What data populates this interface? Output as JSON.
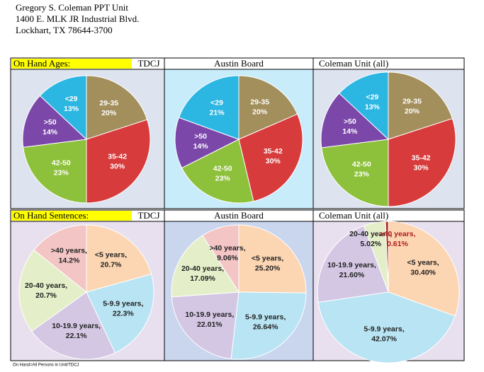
{
  "header": {
    "lines": [
      "Gregory S. Coleman PPT Unit",
      "1400 E. MLK JR Industrial Blvd.",
      "Lockhart, TX  78644-3700"
    ]
  },
  "rows": [
    "On Hand Ages:",
    "On Hand Sentences:"
  ],
  "footnote": "On Hand=All Persons in Unit/TDCJ",
  "chart_data": [
    {
      "type": "pie",
      "title": "TDCJ",
      "categories": [
        "29-35",
        "35-42",
        "42-50",
        ">50",
        "<29"
      ],
      "values": [
        20,
        30,
        23,
        14,
        13
      ],
      "value_labels": [
        "20%",
        "30%",
        "23%",
        "14%",
        "13%"
      ],
      "colors": [
        "#a38f5c",
        "#d83b3b",
        "#8dc03b",
        "#7b47a9",
        "#2cb6e2"
      ]
    },
    {
      "type": "pie",
      "title": "Austin Board",
      "categories": [
        "29-35",
        "35-42",
        "42-50",
        ">50",
        "<29"
      ],
      "values": [
        20,
        30,
        23,
        14,
        21
      ],
      "value_labels": [
        "20%",
        "30%",
        "23%",
        "14%",
        "21%"
      ],
      "colors": [
        "#a38f5c",
        "#d83b3b",
        "#8dc03b",
        "#7b47a9",
        "#2cb6e2"
      ]
    },
    {
      "type": "pie",
      "title": "Coleman Unit (all)",
      "categories": [
        "29-35",
        "35-42",
        "42-50",
        ">50",
        "<29"
      ],
      "values": [
        20,
        30,
        23,
        14,
        13
      ],
      "value_labels": [
        "20%",
        "30%",
        "23%",
        "14%",
        "13%"
      ],
      "colors": [
        "#a38f5c",
        "#d83b3b",
        "#8dc03b",
        "#7b47a9",
        "#2cb6e2"
      ]
    },
    {
      "type": "pie",
      "title": "TDCJ",
      "categories": [
        "<5 years,",
        "5-9.9 years,",
        "10-19.9 years,",
        "20-40 years,",
        ">40 years,"
      ],
      "values": [
        20.7,
        22.3,
        22.1,
        20.7,
        14.2
      ],
      "value_labels": [
        "20.7%",
        "22.3%",
        "22.1%",
        "20.7%",
        "14.2%"
      ],
      "colors": [
        "#fcd6b2",
        "#b8e4f3",
        "#d4c7e4",
        "#e4efc9",
        "#f3c5c5"
      ]
    },
    {
      "type": "pie",
      "title": "Austin Board",
      "categories": [
        "<5 years,",
        "5-9.9 years,",
        "10-19.9 years,",
        "20-40 years,",
        ">40 years,"
      ],
      "values": [
        25.2,
        26.64,
        22.01,
        17.09,
        9.06
      ],
      "value_labels": [
        "25.20%",
        "26.64%",
        "22.01%",
        "17.09%",
        "9.06%"
      ],
      "colors": [
        "#fcd6b2",
        "#b8e4f3",
        "#d4c7e4",
        "#e4efc9",
        "#f3c5c5"
      ]
    },
    {
      "type": "pie",
      "title": "Coleman Unit (all)",
      "categories": [
        "<5 years,",
        "5-9.9 years,",
        "10-19.9 years,",
        "20-40 years,",
        ">40 years,"
      ],
      "values": [
        30.4,
        42.07,
        21.6,
        5.02,
        0.61
      ],
      "value_labels": [
        "30.40%",
        "42.07%",
        "21.60%",
        "5.02%",
        "0.61%"
      ],
      "colors": [
        "#fcd6b2",
        "#b8e4f3",
        "#d4c7e4",
        "#e4efc9",
        "#b01c1c"
      ]
    }
  ]
}
